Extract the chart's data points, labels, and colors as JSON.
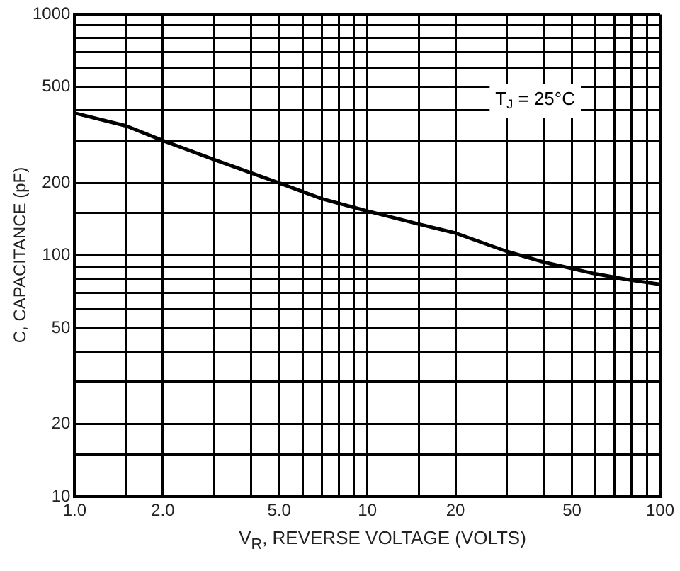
{
  "chart_data": {
    "type": "line",
    "xlabel": "V$_{R}$, REVERSE VOLTAGE (VOLTS)",
    "ylabel": "C, CAPACITANCE (pF)",
    "annotations": [
      "T$_{J}$ = 25°C"
    ],
    "x": [
      1,
      1.5,
      2,
      3,
      5,
      7,
      10,
      15,
      20,
      30,
      40,
      60,
      80,
      100
    ],
    "series": [
      {
        "color": "#000000",
        "values": [
          390,
          345,
          300,
          250,
          200,
          172,
          153,
          135,
          124,
          104,
          94,
          84,
          79,
          76
        ]
      }
    ],
    "log": "xy",
    "grid": true,
    "legend": false,
    "marker": "none",
    "line_style": "solid",
    "xlim": [
      1,
      100
    ],
    "ylim": [
      10,
      1000
    ],
    "xticks": [
      {
        "value": 1,
        "label": "1.0"
      },
      {
        "value": 1.5,
        "label": null
      },
      {
        "value": 2,
        "label": "2.0"
      },
      {
        "value": 3,
        "label": null
      },
      {
        "value": 4,
        "label": null
      },
      {
        "value": 5,
        "label": "5.0"
      },
      {
        "value": 6,
        "label": null
      },
      {
        "value": 7,
        "label": null
      },
      {
        "value": 8,
        "label": null
      },
      {
        "value": 9,
        "label": null
      },
      10,
      {
        "value": 15,
        "label": null
      },
      20,
      {
        "value": 30,
        "label": null
      },
      {
        "value": 40,
        "label": null
      },
      50,
      {
        "value": 60,
        "label": null
      },
      {
        "value": 70,
        "label": null
      },
      {
        "value": 80,
        "label": null
      },
      {
        "value": 90,
        "label": null
      },
      100
    ],
    "yticks": [
      10,
      {
        "value": 15,
        "label": null
      },
      20,
      {
        "value": 30,
        "label": null
      },
      {
        "value": 40,
        "label": null
      },
      50,
      {
        "value": 60,
        "label": null
      },
      {
        "value": 70,
        "label": null
      },
      {
        "value": 80,
        "label": null
      },
      {
        "value": 90,
        "label": null
      },
      100,
      {
        "value": 150,
        "label": null
      },
      200,
      {
        "value": 300,
        "label": null
      },
      {
        "value": 400,
        "label": null
      },
      500,
      {
        "value": 600,
        "label": null
      },
      {
        "value": 700,
        "label": null
      },
      {
        "value": 800,
        "label": null
      },
      {
        "value": 900,
        "label": null
      },
      1000
    ]
  }
}
